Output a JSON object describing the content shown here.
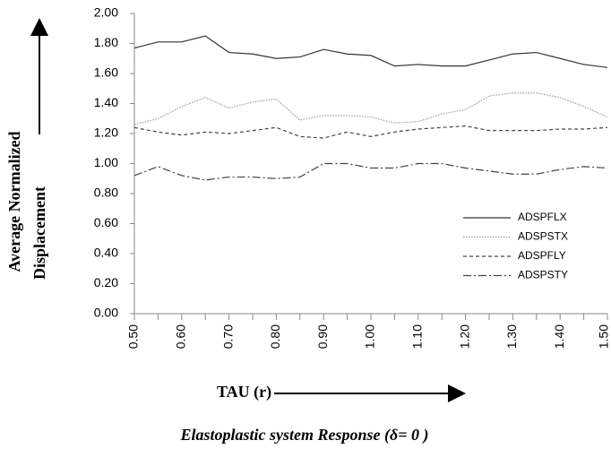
{
  "chart_data": {
    "type": "line",
    "title": "Elastoplastic system Response (δ= 0 )",
    "x_label": "TAU (r)",
    "y_label": [
      "Average Normalized",
      "Displacement"
    ],
    "categories": [
      "0.50",
      null,
      "0.60",
      null,
      "0.70",
      null,
      "0.80",
      null,
      "0.90",
      null,
      "1.00",
      null,
      "1.10",
      null,
      "1.20",
      null,
      "1.30",
      null,
      "1.40",
      null,
      "1.50"
    ],
    "series": [
      {
        "name": "ADSPFLX",
        "color": "#333333",
        "dash": "solid",
        "values": [
          1.77,
          1.81,
          1.81,
          1.85,
          1.74,
          1.73,
          1.7,
          1.71,
          1.76,
          1.73,
          1.72,
          1.65,
          1.66,
          1.65,
          1.65,
          1.69,
          1.73,
          1.74,
          1.7,
          1.66,
          1.64
        ]
      },
      {
        "name": "ADSPSTX",
        "color": "#9a9a9a",
        "dash": "dotted",
        "values": [
          1.26,
          1.3,
          1.38,
          1.44,
          1.37,
          1.41,
          1.43,
          1.29,
          1.32,
          1.32,
          1.31,
          1.27,
          1.28,
          1.33,
          1.36,
          1.45,
          1.47,
          1.47,
          1.44,
          1.38,
          1.31
        ]
      },
      {
        "name": "ADSPFLY",
        "color": "#444444",
        "dash": "dashed",
        "values": [
          1.24,
          1.21,
          1.19,
          1.21,
          1.2,
          1.22,
          1.24,
          1.18,
          1.17,
          1.21,
          1.18,
          1.21,
          1.23,
          1.24,
          1.25,
          1.22,
          1.22,
          1.22,
          1.23,
          1.23,
          1.24
        ]
      },
      {
        "name": "ADSPSTY",
        "color": "#444444",
        "dash": "dashdot",
        "values": [
          0.92,
          0.98,
          0.92,
          0.89,
          0.91,
          0.91,
          0.9,
          0.91,
          1.0,
          1.0,
          0.97,
          0.97,
          1.0,
          1.0,
          0.97,
          0.95,
          0.93,
          0.93,
          0.96,
          0.98,
          0.97
        ]
      }
    ],
    "ylim": [
      0,
      2
    ],
    "yticks": [
      {
        "value": 0,
        "label": "0.00"
      },
      {
        "value": 0.2,
        "label": "0.20"
      },
      {
        "value": 0.4,
        "label": "0.40"
      },
      {
        "value": 0.6,
        "label": "0.60"
      },
      {
        "value": 0.8,
        "label": "0.80"
      },
      {
        "value": 1,
        "label": "1.00"
      },
      {
        "value": 1.2,
        "label": "1.20"
      },
      {
        "value": 1.4,
        "label": "1.40"
      },
      {
        "value": 1.6,
        "label": "1.60"
      },
      {
        "value": 1.8,
        "label": "1.80"
      },
      {
        "value": 2,
        "label": "2.00"
      }
    ],
    "grid": false,
    "legend": "right"
  }
}
